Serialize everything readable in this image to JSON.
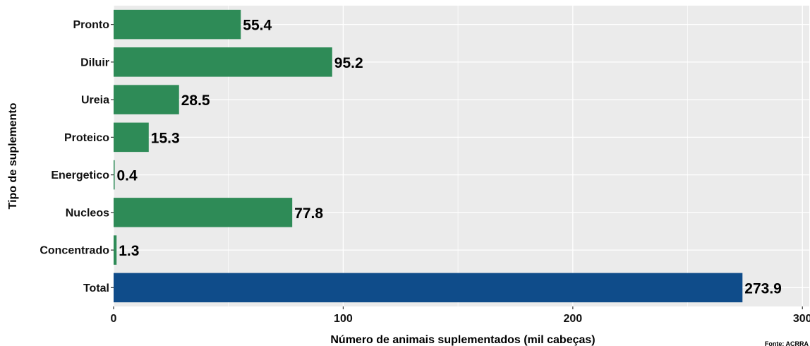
{
  "chart_data": {
    "type": "bar",
    "orientation": "horizontal",
    "title": "",
    "xlabel": "Número de animais suplementados (mil cabeças)",
    "ylabel": "Tipo de suplemento",
    "categories": [
      "Pronto",
      "Diluir",
      "Ureia",
      "Proteico",
      "Energetico",
      "Nucleos",
      "Concentrado",
      "Total"
    ],
    "values": [
      55.4,
      95.2,
      28.5,
      15.3,
      0.4,
      77.8,
      1.3,
      273.9
    ],
    "value_labels": [
      "55.4",
      "95.2",
      "28.5",
      "15.3",
      "0.4",
      "77.8",
      "1.3",
      "273.9"
    ],
    "x_ticks": [
      0,
      100,
      200,
      300
    ],
    "x_tick_labels": [
      "0",
      "100",
      "200",
      "300"
    ],
    "xlim": [
      0,
      303
    ],
    "grid": true,
    "legend": "none",
    "colors": {
      "bar": "#2e8b57",
      "total_bar": "#0f4c8a",
      "panel_bg": "#ebebeb",
      "grid": "#ffffff"
    },
    "caption": "Fonte: ACRRA"
  }
}
